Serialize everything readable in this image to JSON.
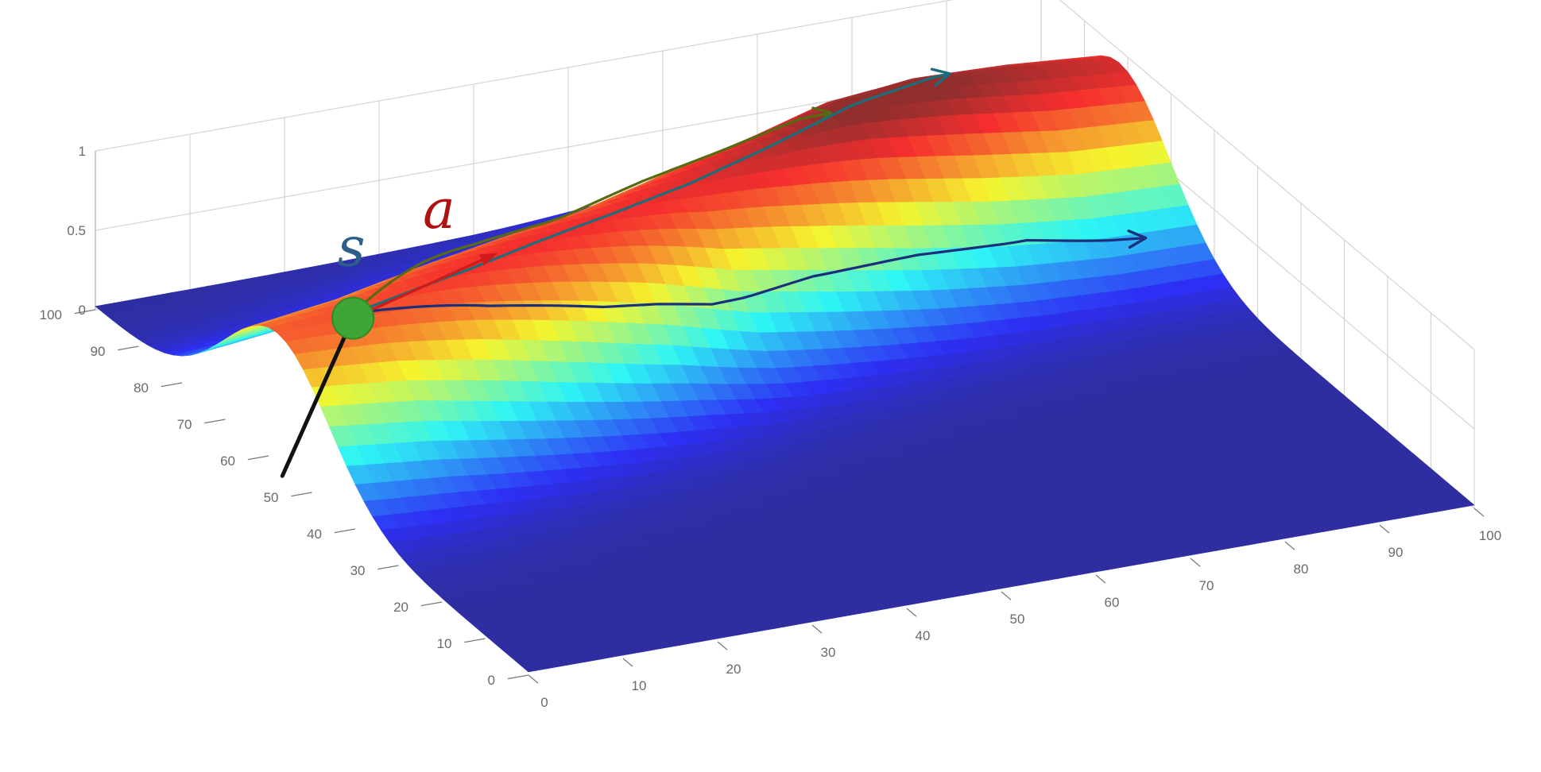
{
  "chart_data": {
    "type": "surface",
    "title": "",
    "xlabel": "",
    "ylabel": "",
    "zlabel": "",
    "x_ticks": [
      "0",
      "10",
      "20",
      "30",
      "40",
      "50",
      "60",
      "70",
      "80",
      "90",
      "100"
    ],
    "y_ticks": [
      "0",
      "10",
      "20",
      "30",
      "40",
      "50",
      "60",
      "70",
      "80",
      "90",
      "100"
    ],
    "z_ticks": [
      "0",
      "0.5",
      "1"
    ],
    "xlim": [
      0,
      100
    ],
    "ylim": [
      0,
      100
    ],
    "zlim": [
      0,
      1
    ],
    "grid": true,
    "colormap": "jet",
    "surface_profile": {
      "description_values_only": true,
      "x": [
        0,
        10,
        20,
        30,
        40,
        50,
        60,
        70,
        80,
        90,
        100
      ],
      "ridge_center_y": [
        58,
        60,
        63,
        66,
        69,
        73,
        76,
        79,
        81,
        82,
        82
      ],
      "ridge_peak_z": [
        0.8,
        0.82,
        0.85,
        0.86,
        0.86,
        0.88,
        0.93,
        1.0,
        1.0,
        0.95,
        0.9
      ],
      "ridge_width_y": 12
    },
    "state_marker": {
      "label": "s",
      "x": 8,
      "y": 58,
      "color": "#3fa535"
    },
    "action_arrow": {
      "label": "a",
      "from": [
        8,
        58
      ],
      "to": [
        26,
        65
      ],
      "color": "#d11a1a"
    },
    "incoming_path": {
      "from": [
        0,
        55
      ],
      "to": [
        8,
        58
      ],
      "color": "#111111"
    },
    "trajectories": [
      {
        "color": "#5a6a10",
        "points": [
          [
            8,
            58
          ],
          [
            18,
            66
          ],
          [
            28,
            74
          ],
          [
            38,
            79
          ],
          [
            48,
            82
          ],
          [
            58,
            86
          ],
          [
            66,
            89
          ],
          [
            74,
            92
          ]
        ]
      },
      {
        "color": "#1a6e7a",
        "points": [
          [
            8,
            58
          ],
          [
            22,
            62
          ],
          [
            36,
            67
          ],
          [
            48,
            71
          ],
          [
            60,
            75
          ],
          [
            72,
            79
          ],
          [
            82,
            82
          ]
        ]
      },
      {
        "color": "#1b2f7a",
        "points": [
          [
            8,
            58
          ],
          [
            22,
            57
          ],
          [
            34,
            57
          ],
          [
            46,
            58
          ],
          [
            58,
            61
          ],
          [
            70,
            63
          ],
          [
            82,
            64
          ],
          [
            94,
            63
          ]
        ]
      }
    ],
    "colors": {
      "state": "#3fa535",
      "action": "#d11a1a",
      "label_s": "#2e5f8a",
      "label_a": "#b01212"
    }
  }
}
